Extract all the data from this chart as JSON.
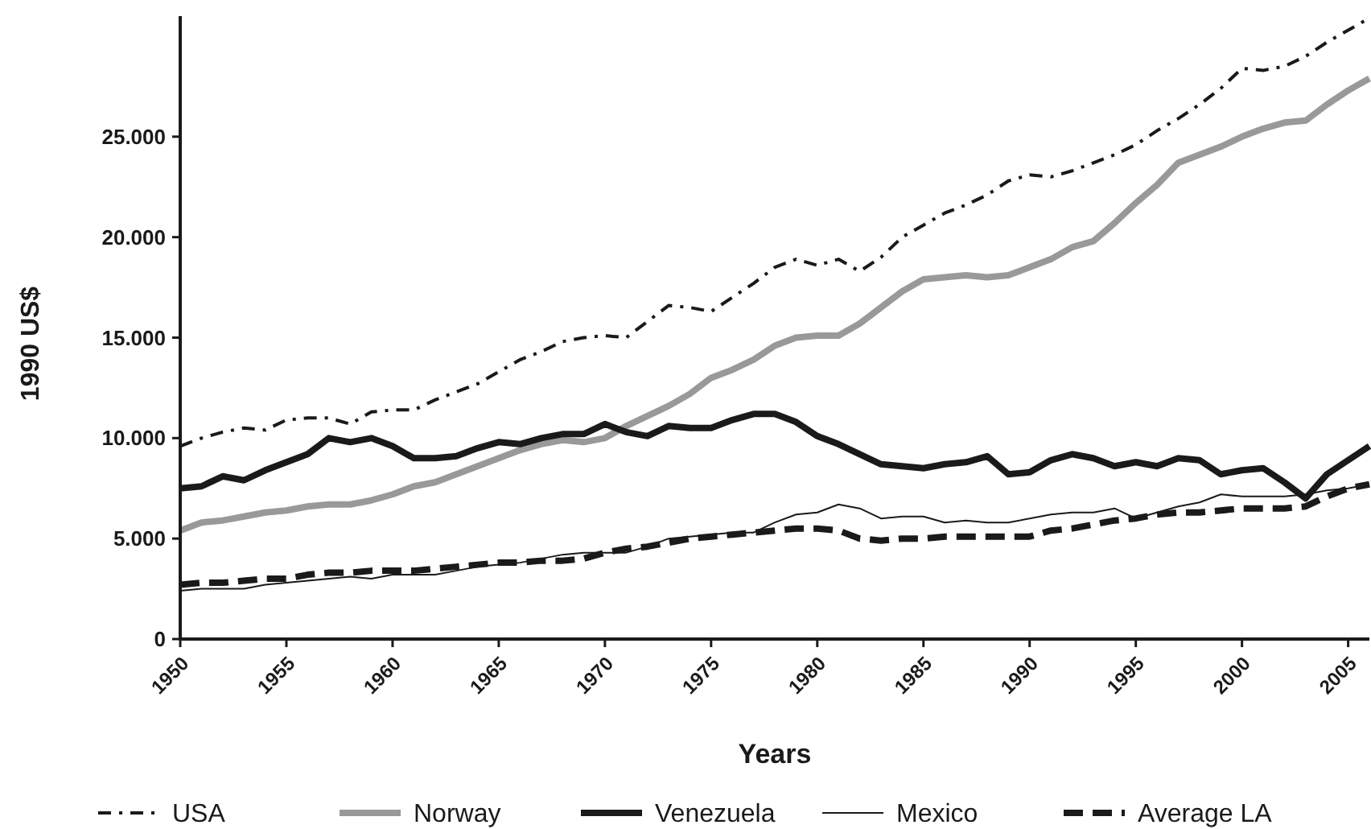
{
  "chart_data": {
    "type": "line",
    "xlabel": "Years",
    "ylabel": "1990 US$",
    "x": [
      1950,
      1951,
      1952,
      1953,
      1954,
      1955,
      1956,
      1957,
      1958,
      1959,
      1960,
      1961,
      1962,
      1963,
      1964,
      1965,
      1966,
      1967,
      1968,
      1969,
      1970,
      1971,
      1972,
      1973,
      1974,
      1975,
      1976,
      1977,
      1978,
      1979,
      1980,
      1981,
      1982,
      1983,
      1984,
      1985,
      1986,
      1987,
      1988,
      1989,
      1990,
      1991,
      1992,
      1993,
      1994,
      1995,
      1996,
      1997,
      1998,
      1999,
      2000,
      2001,
      2002,
      2003,
      2004,
      2005,
      2006
    ],
    "xlim": [
      1950,
      2006
    ],
    "xticks": [
      1950,
      1955,
      1960,
      1965,
      1970,
      1975,
      1980,
      1985,
      1990,
      1995,
      2000,
      2005
    ],
    "ylim": [
      0,
      31000
    ],
    "yticks": [
      0,
      {
        "value": 5000,
        "label": "5.000"
      },
      {
        "value": 10000,
        "label": "10.000"
      },
      {
        "value": 15000,
        "label": "15.000"
      },
      {
        "value": 20000,
        "label": "20.000"
      },
      {
        "value": 25000,
        "label": "25.000"
      }
    ],
    "grid": false,
    "legend": "bottom",
    "marker": "none",
    "series": [
      {
        "name": "USA",
        "color": "#1a1a1a",
        "line_style": "dashdot",
        "values": [
          9600,
          10000,
          10300,
          10500,
          10400,
          10900,
          11000,
          11000,
          10700,
          11300,
          11400,
          11400,
          11900,
          12300,
          12700,
          13300,
          13900,
          14300,
          14800,
          15000,
          15100,
          15000,
          15800,
          16600,
          16500,
          16300,
          17000,
          17700,
          18500,
          18900,
          18600,
          18900,
          18300,
          19000,
          20000,
          20600,
          21200,
          21600,
          22100,
          22800,
          23100,
          23000,
          23300,
          23700,
          24100,
          24600,
          25300,
          25900,
          26600,
          27400,
          28400,
          28300,
          28500,
          29000,
          29700,
          30300,
          30900
        ]
      },
      {
        "name": "Norway",
        "color": "#999999",
        "line_style": "solid",
        "values": [
          5400,
          5800,
          5900,
          6100,
          6300,
          6400,
          6600,
          6700,
          6700,
          6900,
          7200,
          7600,
          7800,
          8200,
          8600,
          9000,
          9400,
          9700,
          9900,
          9800,
          10000,
          10600,
          11100,
          11600,
          12200,
          13000,
          13400,
          13900,
          14600,
          15000,
          15100,
          15100,
          15700,
          16500,
          17300,
          17900,
          18000,
          18100,
          18000,
          18100,
          18500,
          18900,
          19500,
          19800,
          20700,
          21700,
          22600,
          23700,
          24100,
          24500,
          25000,
          25400,
          25700,
          25800,
          26600,
          27300,
          27900
        ]
      },
      {
        "name": "Venezuela",
        "color": "#1a1a1a",
        "line_style": "solid",
        "values": [
          7500,
          7600,
          8100,
          7900,
          8400,
          8800,
          9200,
          10000,
          9800,
          10000,
          9600,
          9000,
          9000,
          9100,
          9500,
          9800,
          9700,
          10000,
          10200,
          10200,
          10700,
          10300,
          10100,
          10600,
          10500,
          10500,
          10900,
          11200,
          11200,
          10800,
          10100,
          9700,
          9200,
          8700,
          8600,
          8500,
          8700,
          8800,
          9100,
          8200,
          8300,
          8900,
          9200,
          9000,
          8600,
          8800,
          8600,
          9000,
          8900,
          8200,
          8400,
          8500,
          7800,
          7000,
          8200,
          8900,
          9600
        ]
      },
      {
        "name": "Mexico",
        "color": "#1a1a1a",
        "line_style": "solid",
        "values": [
          2400,
          2500,
          2500,
          2500,
          2700,
          2800,
          2900,
          3000,
          3100,
          3000,
          3200,
          3200,
          3200,
          3400,
          3600,
          3700,
          3800,
          4000,
          4200,
          4300,
          4300,
          4300,
          4600,
          5000,
          5100,
          5200,
          5300,
          5300,
          5800,
          6200,
          6300,
          6700,
          6500,
          6000,
          6100,
          6100,
          5800,
          5900,
          5800,
          5800,
          6000,
          6200,
          6300,
          6300,
          6500,
          6000,
          6300,
          6600,
          6800,
          7200,
          7100,
          7100,
          7100,
          7200,
          7400,
          7500,
          7700
        ]
      },
      {
        "name": "Average LA",
        "color": "#1a1a1a",
        "line_style": "dashed",
        "values": [
          2700,
          2800,
          2800,
          2900,
          3000,
          3000,
          3200,
          3300,
          3300,
          3400,
          3400,
          3400,
          3500,
          3600,
          3700,
          3800,
          3800,
          3900,
          3900,
          4000,
          4300,
          4500,
          4600,
          4800,
          5000,
          5100,
          5200,
          5300,
          5400,
          5500,
          5500,
          5400,
          5000,
          4900,
          5000,
          5000,
          5100,
          5100,
          5100,
          5100,
          5100,
          5400,
          5500,
          5700,
          5900,
          6000,
          6200,
          6300,
          6300,
          6400,
          6500,
          6500,
          6500,
          6600,
          7100,
          7500,
          7700
        ]
      }
    ]
  }
}
